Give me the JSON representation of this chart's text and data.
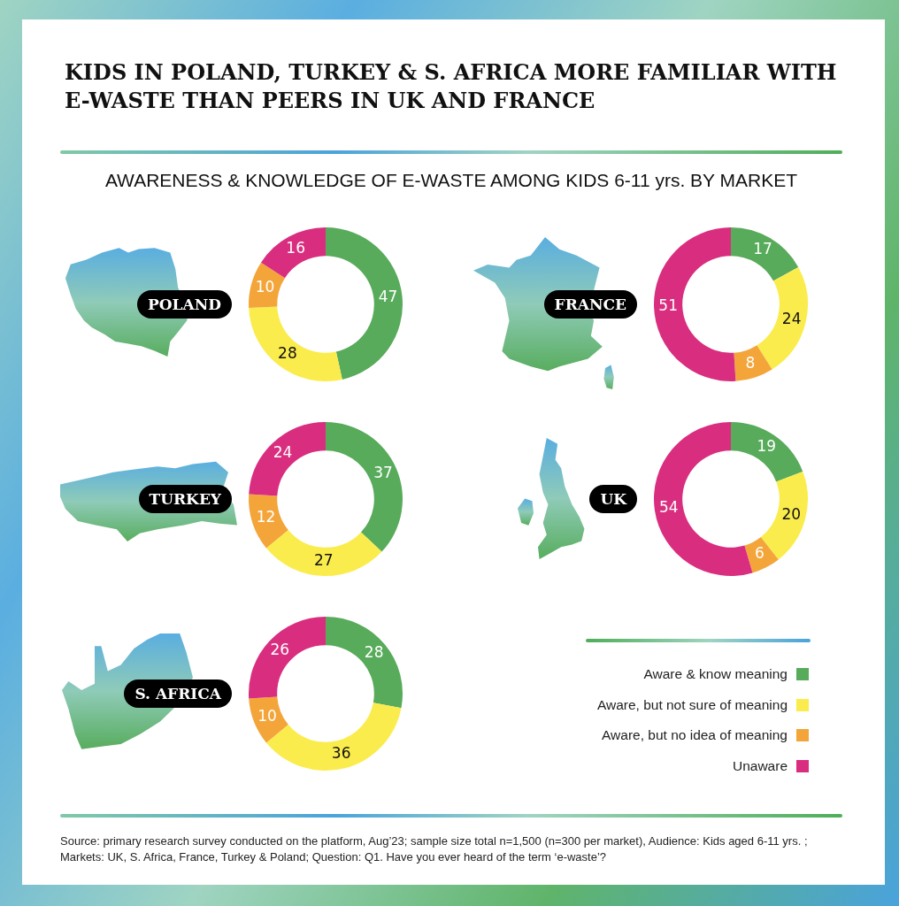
{
  "chart_data": [
    {
      "type": "other",
      "title": "KIDS IN POLAND, TURKEY & S. AFRICA MORE FAMILIAR WITH E-WASTE THAN PEERS IN UK AND FRANCE",
      "subtitle": "AWARENESS & KNOWLEDGE OF E-WASTE AMONG KIDS 6-11 yrs. BY MARKET"
    },
    {
      "type": "donut",
      "title": "POLAND",
      "categories": [
        null,
        null,
        null,
        null
      ],
      "values": [
        47,
        28,
        10,
        16
      ],
      "colors": [
        "#58ab5b",
        "#fbec4d",
        "#f3a53a",
        "#d92e7f"
      ],
      "data_labels": true
    },
    {
      "type": "donut",
      "title": "FRANCE",
      "categories": [
        null,
        null,
        null,
        null
      ],
      "values": [
        17,
        24,
        8,
        51
      ],
      "colors": [
        "#58ab5b",
        "#fbec4d",
        "#f3a53a",
        "#d92e7f"
      ],
      "data_labels": true
    },
    {
      "type": "donut",
      "title": "TURKEY",
      "categories": [
        null,
        null,
        null,
        null
      ],
      "values": [
        37,
        27,
        12,
        24
      ],
      "colors": [
        "#58ab5b",
        "#fbec4d",
        "#f3a53a",
        "#d92e7f"
      ],
      "data_labels": true
    },
    {
      "type": "donut",
      "title": "UK",
      "categories": [
        null,
        null,
        null,
        null
      ],
      "values": [
        19,
        20,
        6,
        54
      ],
      "colors": [
        "#58ab5b",
        "#fbec4d",
        "#f3a53a",
        "#d92e7f"
      ],
      "data_labels": true
    },
    {
      "type": "donut",
      "title": "S. AFRICA",
      "categories": [
        "Aware & know meaning",
        "Aware, but not sure of meaning",
        "Aware, but no idea of meaning",
        "Unaware"
      ],
      "values": [
        28,
        36,
        10,
        26
      ],
      "colors": [
        "#58ab5b",
        "#fbec4d",
        "#f3a53a",
        "#d92e7f"
      ],
      "data_labels": true,
      "legend": "right"
    },
    {
      "type": "other",
      "annotations": [
        "Source: primary research survey conducted on the platform, Aug’23; sample size total n=1,500 (n=300 per market), Audience: Kids aged 6-11 yrs. ; Markets: UK, S. Africa, France, Turkey & Poland; Question: Q1. Have you ever heard of the term ‘e-waste’?"
      ]
    }
  ]
}
